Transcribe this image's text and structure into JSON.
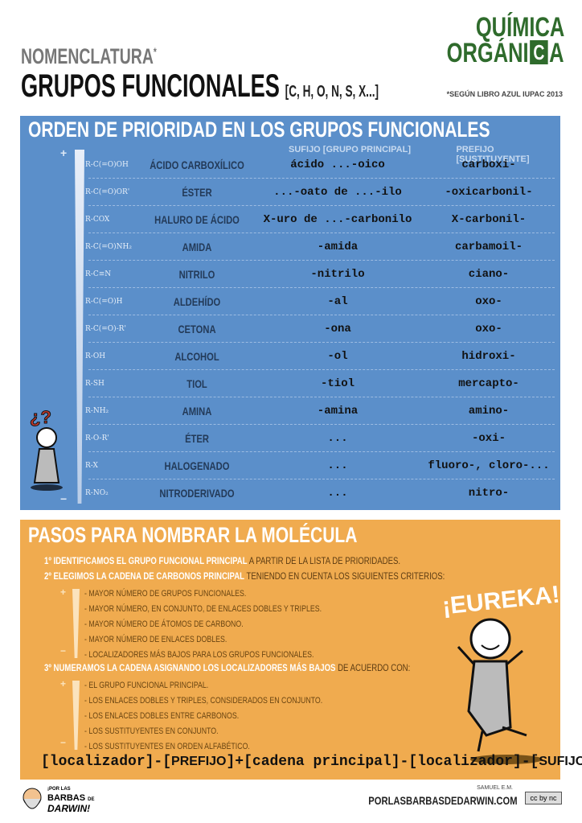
{
  "header": {
    "subtitle": "NOMENCLATURA",
    "asterisk": "*",
    "title": "GRUPOS FUNCIONALES",
    "elements": "[C, H, O, N, S, X...]",
    "note": "*SEGÚN LIBRO AZUL IUPAC 2013",
    "logo": {
      "line1": "QUÍMICA",
      "line2a": "ORGÁNI",
      "element": "C",
      "line2b": "A"
    }
  },
  "priority": {
    "title": "ORDEN DE PRIORIDAD EN LOS GRUPOS FUNCIONALES",
    "col_suffix": "SUFIJO [GRUPO PRINCIPAL]",
    "col_prefix": "PREFIJO [SUSTITUYENTE]",
    "plus": "+",
    "minus": "−",
    "rows": [
      {
        "formula": "R-C(=O)OH",
        "name": "ÁCIDO CARBOXÍLICO",
        "suffix": "ácido ...-oico",
        "prefix": "carboxi-"
      },
      {
        "formula": "R-C(=O)OR'",
        "name": "ÉSTER",
        "suffix": "...-oato de ...-ilo",
        "prefix": "-oxicarbonil-"
      },
      {
        "formula": "R-COX",
        "name": "HALURO DE ÁCIDO",
        "suffix": "X-uro de ...-carbonilo",
        "prefix": "X-carbonil-"
      },
      {
        "formula": "R-C(=O)NH₂",
        "name": "AMIDA",
        "suffix": "-amida",
        "prefix": "carbamoil-"
      },
      {
        "formula": "R-C≡N",
        "name": "NITRILO",
        "suffix": "-nitrilo",
        "prefix": "ciano-"
      },
      {
        "formula": "R-C(=O)H",
        "name": "ALDEHÍDO",
        "suffix": "-al",
        "prefix": "oxo-"
      },
      {
        "formula": "R-C(=O)-R'",
        "name": "CETONA",
        "suffix": "-ona",
        "prefix": "oxo-"
      },
      {
        "formula": "R-OH",
        "name": "ALCOHOL",
        "suffix": "-ol",
        "prefix": "hidroxi-"
      },
      {
        "formula": "R-SH",
        "name": "TIOL",
        "suffix": "-tiol",
        "prefix": "mercapto-"
      },
      {
        "formula": "R-NH₂",
        "name": "AMINA",
        "suffix": "-amina",
        "prefix": "amino-"
      },
      {
        "formula": "R-O-R'",
        "name": "ÉTER",
        "suffix": "...",
        "prefix": "-oxi-"
      },
      {
        "formula": "R-X",
        "name": "HALOGENADO",
        "suffix": "...",
        "prefix": "fluoro-, cloro-..."
      },
      {
        "formula": "R-NO₂",
        "name": "NITRODERIVADO",
        "suffix": "...",
        "prefix": "nitro-"
      }
    ],
    "character_label": "¿?"
  },
  "steps": {
    "title": "PASOS PARA NOMBRAR LA MOLÉCULA",
    "step1": {
      "bold": "1º IDENTIFICAMOS EL GRUPO FUNCIONAL PRINCIPAL",
      "rest": " A PARTIR DE LA LISTA DE PRIORIDADES."
    },
    "step2": {
      "bold": "2º ELEGIMOS LA CADENA DE CARBONOS PRINCIPAL",
      "rest": " TENIENDO EN CUENTA LOS SIGUIENTES CRITERIOS:"
    },
    "criteria2": [
      "- MAYOR NÚMERO DE GRUPOS FUNCIONALES.",
      "- MAYOR NÚMERO, EN CONJUNTO, DE ENLACES DOBLES Y TRIPLES.",
      "- MAYOR NÚMERO DE ÁTOMOS DE CARBONO.",
      "- MAYOR NÚMERO DE ENLACES DOBLES.",
      "- LOCALIZADORES MÁS BAJOS PARA LOS GRUPOS FUNCIONALES."
    ],
    "step3": {
      "bold": "3º NUMERAMOS LA CADENA ASIGNANDO LOS LOCALIZADORES MÁS BAJOS",
      "rest": " DE ACUERDO CON:"
    },
    "criteria3": [
      "- EL GRUPO FUNCIONAL PRINCIPAL.",
      "- LOS ENLACES DOBLES Y TRIPLES, CONSIDERADOS EN CONJUNTO.",
      "- LOS ENLACES DOBLES ENTRE CARBONOS.",
      "- LOS SUSTITUYENTES EN CONJUNTO.",
      "- LOS SUSTITUYENTES EN ORDEN ALFABÉTICO."
    ],
    "eureka": "¡EUREKA!",
    "formula": {
      "p1": "[localizador]-[",
      "prefix": "PREFIJO",
      "p2": "]+[cadena principal]-[localizador]-[",
      "suffix": "SUFIJO",
      "p3": "]"
    }
  },
  "footer": {
    "brand_small": "¡POR LAS",
    "brand1": "BARBAS",
    "brand_de": "DE",
    "brand2": "DARWIN!",
    "author": "SAMUEL E.M.",
    "site": "PORLASBARBASDEDARWIN.COM",
    "license": "cc by nc"
  },
  "colors": {
    "blue": "#5b8fca",
    "orange": "#f0ab4f",
    "logo_green": "#2f6b2c"
  }
}
